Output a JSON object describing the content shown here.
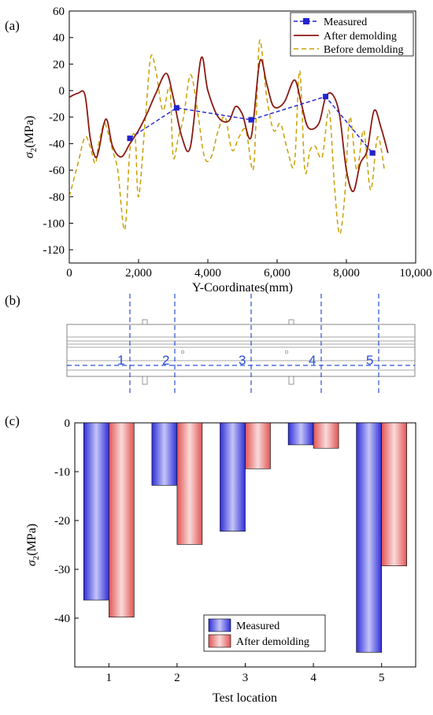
{
  "panel_labels": [
    "(a)",
    "(b)",
    "(c)"
  ],
  "chart_data": [
    {
      "type": "line",
      "xlabel": "Y-Coordinates(mm)",
      "ylabel": "σ2(MPa)",
      "xlim": [
        0,
        10000
      ],
      "ylim": [
        -130,
        60
      ],
      "xticks": [
        0,
        2000,
        4000,
        6000,
        8000,
        10000
      ],
      "xtick_labels": [
        "0",
        "2,000",
        "4,000",
        "6,000",
        "8,000",
        "10,000"
      ],
      "yticks": [
        60,
        40,
        20,
        0,
        -20,
        -40,
        -60,
        -80,
        -100,
        -120
      ],
      "legend_position": "top-right",
      "grid": false,
      "series": [
        {
          "name": "Measured",
          "style": "dashed-square",
          "color": "#2323cf",
          "x": [
            1750,
            3100,
            5250,
            7400,
            8750
          ],
          "y": [
            -36,
            -13,
            -22,
            -4.5,
            -47
          ]
        },
        {
          "name": "After demolding",
          "style": "solid",
          "color": "#8b1a12",
          "x": [
            0,
            250,
            450,
            600,
            750,
            850,
            1000,
            1100,
            1250,
            1500,
            1750,
            2000,
            2250,
            2500,
            2800,
            3000,
            3250,
            3500,
            3800,
            4000,
            4300,
            4600,
            4800,
            5000,
            5250,
            5500,
            5700,
            5900,
            6200,
            6500,
            6700,
            6900,
            7200,
            7400,
            7600,
            7800,
            8000,
            8200,
            8400,
            8600,
            8800,
            9000,
            9200
          ],
          "y": [
            -5,
            -2,
            -3,
            -35,
            -50,
            -45,
            -25,
            -23,
            -42,
            -50,
            -40,
            -30,
            -17,
            -2,
            13,
            -5,
            -35,
            -42,
            24,
            0,
            -20,
            -23,
            -12,
            -18,
            -35,
            22,
            5,
            -12,
            -9,
            8,
            -10,
            -28,
            -25,
            -5,
            -3,
            -18,
            -60,
            -76,
            -55,
            -45,
            -15,
            -28,
            -47
          ]
        },
        {
          "name": "Before demolding",
          "style": "dashed",
          "color": "#c9a000",
          "x": [
            0,
            250,
            450,
            600,
            750,
            850,
            1000,
            1100,
            1250,
            1400,
            1600,
            1750,
            1900,
            2000,
            2200,
            2350,
            2500,
            2700,
            2900,
            3000,
            3150,
            3300,
            3500,
            3700,
            3900,
            4100,
            4300,
            4500,
            4700,
            4900,
            5100,
            5300,
            5400,
            5500,
            5700,
            5900,
            6100,
            6300,
            6500,
            6650,
            6800,
            6950,
            7100,
            7300,
            7500,
            7650,
            7800,
            7950,
            8100,
            8300,
            8500,
            8700,
            8900,
            9100
          ],
          "y": [
            -80,
            -55,
            -35,
            -42,
            -55,
            -40,
            -25,
            -30,
            -45,
            -60,
            -105,
            -45,
            -35,
            -80,
            -20,
            25,
            15,
            -15,
            2,
            -50,
            -35,
            -20,
            12,
            -15,
            -50,
            -50,
            -30,
            -20,
            -45,
            -35,
            -30,
            -60,
            -18,
            38,
            -5,
            -30,
            -25,
            -45,
            -55,
            15,
            -60,
            -45,
            -42,
            -50,
            -15,
            -70,
            -108,
            -80,
            -20,
            -60,
            -30,
            -75,
            -35,
            -60
          ]
        }
      ]
    },
    {
      "type": "bar",
      "xlabel": "Test location",
      "ylabel": "σ2(MPa)",
      "ylim": [
        -50,
        0
      ],
      "yticks": [
        0,
        -10,
        -20,
        -30,
        -40
      ],
      "categories": [
        "1",
        "2",
        "3",
        "4",
        "5"
      ],
      "legend_position": "bottom-right",
      "series": [
        {
          "name": "Measured",
          "color": "#4747e6",
          "values": [
            -36.3,
            -12.8,
            -22.2,
            -4.5,
            -47.0
          ]
        },
        {
          "name": "After demolding",
          "color": "#e96a6a",
          "values": [
            -39.8,
            -24.9,
            -9.4,
            -5.2,
            -29.3
          ]
        }
      ]
    }
  ],
  "diagram": {
    "section_labels": [
      "1",
      "2",
      "3",
      "4",
      "5"
    ]
  }
}
